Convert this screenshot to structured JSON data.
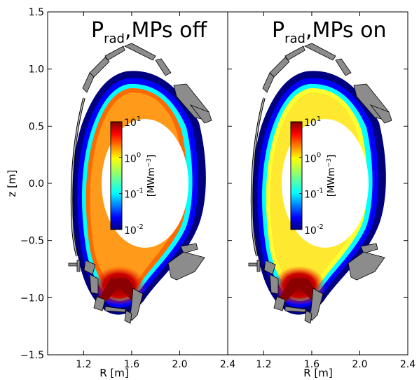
{
  "chart_data": {
    "type": "heatmap",
    "xlabel": "R [m]",
    "ylabel": "z [m]",
    "xlim": [
      0.9,
      2.4
    ],
    "ylim": [
      -1.5,
      1.5
    ],
    "y_ticks": [
      1.5,
      1.0,
      0.5,
      0.0,
      -0.5,
      -1.0,
      -1.5
    ],
    "y_tick_labels": [
      "1.5",
      "1.0",
      "0.5",
      "0.0",
      "−0.5",
      "−1.0",
      "−1.5"
    ],
    "x_ticks": [
      1.2,
      1.6,
      2.0,
      2.4
    ],
    "x_tick_labels": [
      "1.2",
      "1.6",
      "2.0",
      "2.4"
    ],
    "colorbar": {
      "scale": "log",
      "range": [
        0.01,
        10
      ],
      "ticks": [
        10,
        1,
        0.1,
        0.01
      ],
      "tick_base": "10",
      "tick_exponents": [
        "1",
        "0",
        "-1",
        "-2"
      ],
      "label_prefix": "[MWm",
      "label_exp": "−3",
      "label_suffix": "]"
    },
    "panels": [
      {
        "title_main": "P",
        "title_sub": "rad",
        "title_rest": ",MPs off",
        "ring_value": 1.2,
        "sol_value": 0.02
      },
      {
        "title_main": "P",
        "title_sub": "rad",
        "title_rest": ",MPs on",
        "ring_value": 0.4,
        "sol_value": 0.05
      }
    ]
  },
  "colors": {
    "jet_dark_blue": "#00007f",
    "jet_blue": "#0000ff",
    "jet_cyan": "#00ffff",
    "jet_yellow": "#ffff00",
    "jet_orange": "#ff8c00",
    "jet_red": "#ff0000",
    "jet_dark_red": "#7f0000",
    "wall_fill": "#8c8c8c"
  }
}
